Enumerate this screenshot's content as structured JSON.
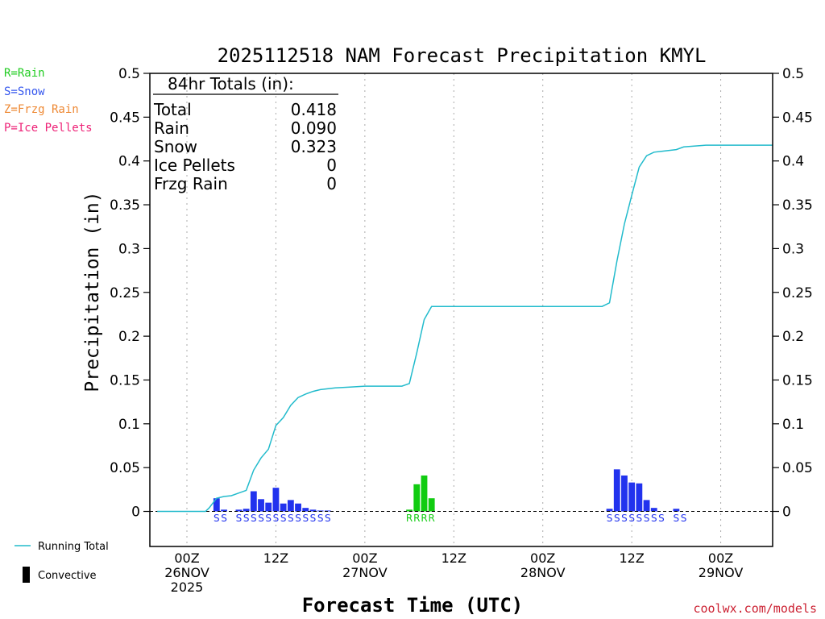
{
  "chart_data": {
    "type": "bar+line",
    "title": "2025112518 NAM Forecast Precipitation KMYL",
    "xlabel": "Forecast Time (UTC)",
    "ylabel": "Precipitation (in)",
    "ylim": [
      -0.04,
      0.5
    ],
    "y_ticks": [
      0,
      0.05,
      0.1,
      0.15,
      0.2,
      0.25,
      0.3,
      0.35,
      0.4,
      0.45,
      0.5
    ],
    "y_tick_labels": [
      "0",
      "0.05",
      "0.1",
      "0.15",
      "0.2",
      "0.25",
      "0.3",
      "0.35",
      "0.4",
      "0.45",
      "0.5"
    ],
    "x_range_hours": [
      -5,
      79
    ],
    "x_ticks": [
      {
        "hour": 0,
        "lines": [
          "00Z",
          "26NOV",
          "2025"
        ]
      },
      {
        "hour": 12,
        "lines": [
          "12Z"
        ]
      },
      {
        "hour": 24,
        "lines": [
          "00Z",
          "27NOV"
        ]
      },
      {
        "hour": 36,
        "lines": [
          "12Z"
        ]
      },
      {
        "hour": 48,
        "lines": [
          "00Z",
          "28NOV"
        ]
      },
      {
        "hour": 60,
        "lines": [
          "12Z"
        ]
      },
      {
        "hour": 72,
        "lines": [
          "00Z",
          "29NOV"
        ]
      }
    ],
    "grid_hours": [
      0,
      12,
      24,
      36,
      48,
      60,
      72
    ],
    "precip_type_legend": [
      {
        "text": "R=Rain",
        "color": "#22cc22"
      },
      {
        "text": "S=Snow",
        "color": "#3355ee"
      },
      {
        "text": "Z=Frzg Rain",
        "color": "#ee8833"
      },
      {
        "text": "P=Ice Pellets",
        "color": "#ee2277"
      }
    ],
    "series_legend": [
      {
        "text": "Running Total",
        "kind": "line",
        "color": "#22bbcc"
      },
      {
        "text": "Convective",
        "kind": "bar",
        "color": "#000000"
      }
    ],
    "totals_box": {
      "header": "84hr Totals (in):",
      "rows": [
        {
          "label": "Total",
          "value": "0.418"
        },
        {
          "label": "Rain",
          "value": "0.090"
        },
        {
          "label": "Snow",
          "value": "0.323"
        },
        {
          "label": "Ice Pellets",
          "value": "0"
        },
        {
          "label": "Frzg Rain",
          "value": "0"
        }
      ]
    },
    "hourly_bars": [
      {
        "hour": 4,
        "value": 0.015,
        "type": "S"
      },
      {
        "hour": 5,
        "value": 0.002,
        "type": "S"
      },
      {
        "hour": 7,
        "value": 0.002,
        "type": "S"
      },
      {
        "hour": 8,
        "value": 0.003,
        "type": "S"
      },
      {
        "hour": 9,
        "value": 0.023,
        "type": "S"
      },
      {
        "hour": 10,
        "value": 0.014,
        "type": "S"
      },
      {
        "hour": 11,
        "value": 0.01,
        "type": "S"
      },
      {
        "hour": 12,
        "value": 0.027,
        "type": "S"
      },
      {
        "hour": 13,
        "value": 0.009,
        "type": "S"
      },
      {
        "hour": 14,
        "value": 0.013,
        "type": "S"
      },
      {
        "hour": 15,
        "value": 0.009,
        "type": "S"
      },
      {
        "hour": 16,
        "value": 0.004,
        "type": "S"
      },
      {
        "hour": 17,
        "value": 0.002,
        "type": "S"
      },
      {
        "hour": 18,
        "value": 0.001,
        "type": "S"
      },
      {
        "hour": 19,
        "value": 0.001,
        "type": "S"
      },
      {
        "hour": 30,
        "value": 0.002,
        "type": "R"
      },
      {
        "hour": 31,
        "value": 0.031,
        "type": "R"
      },
      {
        "hour": 32,
        "value": 0.041,
        "type": "R"
      },
      {
        "hour": 33,
        "value": 0.015,
        "type": "R"
      },
      {
        "hour": 57,
        "value": 0.003,
        "type": "S"
      },
      {
        "hour": 58,
        "value": 0.048,
        "type": "S"
      },
      {
        "hour": 59,
        "value": 0.041,
        "type": "S"
      },
      {
        "hour": 60,
        "value": 0.033,
        "type": "S"
      },
      {
        "hour": 61,
        "value": 0.032,
        "type": "S"
      },
      {
        "hour": 62,
        "value": 0.013,
        "type": "S"
      },
      {
        "hour": 63,
        "value": 0.004,
        "type": "S"
      },
      {
        "hour": 66,
        "value": 0.003,
        "type": "S"
      }
    ],
    "type_markers": [
      {
        "hour": 4,
        "text": "S",
        "type": "S"
      },
      {
        "hour": 5,
        "text": "S",
        "type": "S"
      },
      {
        "hour": 7,
        "text": "S",
        "type": "S"
      },
      {
        "hour": 8,
        "text": "S",
        "type": "S"
      },
      {
        "hour": 9,
        "text": "S",
        "type": "S"
      },
      {
        "hour": 10,
        "text": "S",
        "type": "S"
      },
      {
        "hour": 11,
        "text": "S",
        "type": "S"
      },
      {
        "hour": 12,
        "text": "S",
        "type": "S"
      },
      {
        "hour": 13,
        "text": "S",
        "type": "S"
      },
      {
        "hour": 14,
        "text": "S",
        "type": "S"
      },
      {
        "hour": 15,
        "text": "S",
        "type": "S"
      },
      {
        "hour": 16,
        "text": "S",
        "type": "S"
      },
      {
        "hour": 17,
        "text": "S",
        "type": "S"
      },
      {
        "hour": 18,
        "text": "S",
        "type": "S"
      },
      {
        "hour": 19,
        "text": "S",
        "type": "S"
      },
      {
        "hour": 30,
        "text": "R",
        "type": "R"
      },
      {
        "hour": 31,
        "text": "R",
        "type": "R"
      },
      {
        "hour": 32,
        "text": "R",
        "type": "R"
      },
      {
        "hour": 33,
        "text": "R",
        "type": "R"
      },
      {
        "hour": 57,
        "text": "S",
        "type": "S"
      },
      {
        "hour": 58,
        "text": "S",
        "type": "S"
      },
      {
        "hour": 59,
        "text": "S",
        "type": "S"
      },
      {
        "hour": 60,
        "text": "S",
        "type": "S"
      },
      {
        "hour": 61,
        "text": "S",
        "type": "S"
      },
      {
        "hour": 62,
        "text": "S",
        "type": "S"
      },
      {
        "hour": 63,
        "text": "S",
        "type": "S"
      },
      {
        "hour": 64,
        "text": "S",
        "type": "S"
      },
      {
        "hour": 66,
        "text": "S",
        "type": "S"
      },
      {
        "hour": 67,
        "text": "S",
        "type": "S"
      }
    ],
    "running_total": {
      "hours": [
        -4,
        2.5,
        3,
        4,
        5,
        6,
        7,
        8,
        9,
        10,
        11,
        12,
        13,
        14,
        15,
        16,
        17,
        18,
        20,
        22,
        24,
        26,
        28,
        29,
        30,
        31,
        32,
        33,
        34,
        36,
        38,
        42,
        48,
        54,
        56,
        57,
        58,
        59,
        60,
        61,
        62,
        63,
        64,
        66,
        67,
        70,
        74,
        79
      ],
      "values": [
        0,
        0,
        0.004,
        0.015,
        0.017,
        0.018,
        0.021,
        0.024,
        0.047,
        0.061,
        0.071,
        0.098,
        0.107,
        0.121,
        0.13,
        0.134,
        0.137,
        0.139,
        0.141,
        0.142,
        0.143,
        0.143,
        0.143,
        0.143,
        0.146,
        0.181,
        0.219,
        0.234,
        0.234,
        0.234,
        0.234,
        0.234,
        0.234,
        0.234,
        0.234,
        0.238,
        0.286,
        0.328,
        0.361,
        0.393,
        0.406,
        0.41,
        0.411,
        0.413,
        0.416,
        0.418,
        0.418,
        0.418
      ]
    },
    "colors": {
      "snow": "#2233ee",
      "rain": "#11cc11",
      "running_total": "#22bbcc",
      "grid": "#aaaaaa",
      "zero_line": "#000000"
    },
    "credit": "coolwx.com/models"
  }
}
